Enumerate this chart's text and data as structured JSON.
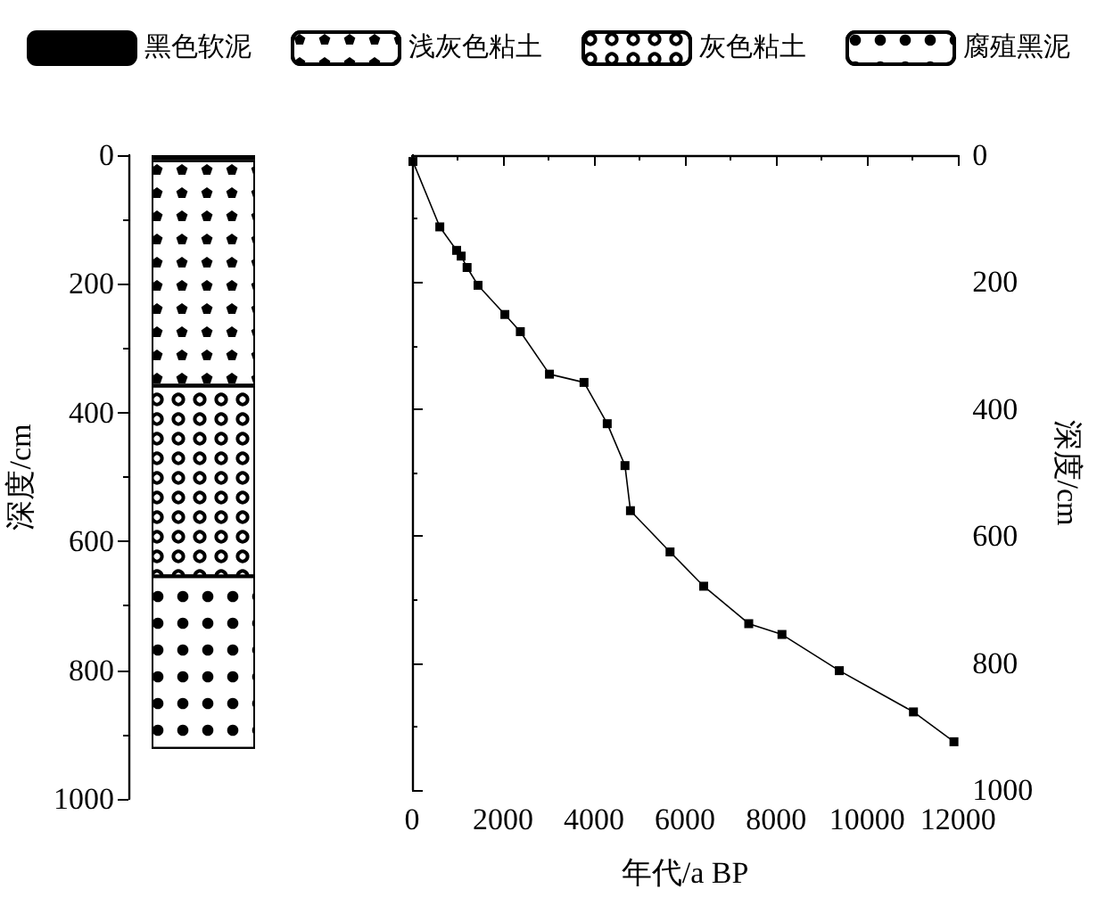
{
  "chart_data": [
    {
      "type": "bar",
      "stacked": true,
      "categories": [
        null
      ],
      "ylabel": "深度/cm",
      "ylim": [
        1000,
        0
      ],
      "yticks": [
        0,
        200,
        400,
        600,
        800,
        1000
      ],
      "tick_labels": "y",
      "grid": false,
      "legend": "top",
      "series": [
        {
          "name": "黑色软泥",
          "color": "#000000",
          "values": [
            8
          ]
        },
        {
          "name": "浅灰色粘土",
          "color": "#ffffff",
          "values": [
            350
          ]
        },
        {
          "name": "灰色粘土",
          "color": "#ffffff",
          "values": [
            296
          ]
        },
        {
          "name": "腐殖黑泥",
          "color": "#ffffff",
          "values": [
            268
          ]
        }
      ]
    },
    {
      "type": "line",
      "xlabel": "年代/a BP",
      "ylabel": "深度/cm",
      "xlim": [
        0,
        12000
      ],
      "xticks": [
        0,
        2000,
        4000,
        6000,
        8000,
        10000,
        12000
      ],
      "ylim": [
        1000,
        0
      ],
      "yticks": [
        0,
        200,
        400,
        600,
        800,
        1000
      ],
      "grid": false,
      "legend": false,
      "marker": "square",
      "line_style": "solid",
      "series": [
        {
          "color": "#000000",
          "x": [
            20,
            610,
            980,
            1080,
            1210,
            1450,
            2040,
            2380,
            3020,
            3780,
            4290,
            4680,
            4800,
            5670,
            6410,
            7400,
            8130,
            9390,
            11020,
            11910
          ],
          "values": [
            10,
            113,
            150,
            159,
            177,
            205,
            251,
            278,
            345,
            358,
            423,
            489,
            560,
            625,
            679,
            738,
            755,
            812,
            877,
            924
          ]
        }
      ]
    }
  ]
}
